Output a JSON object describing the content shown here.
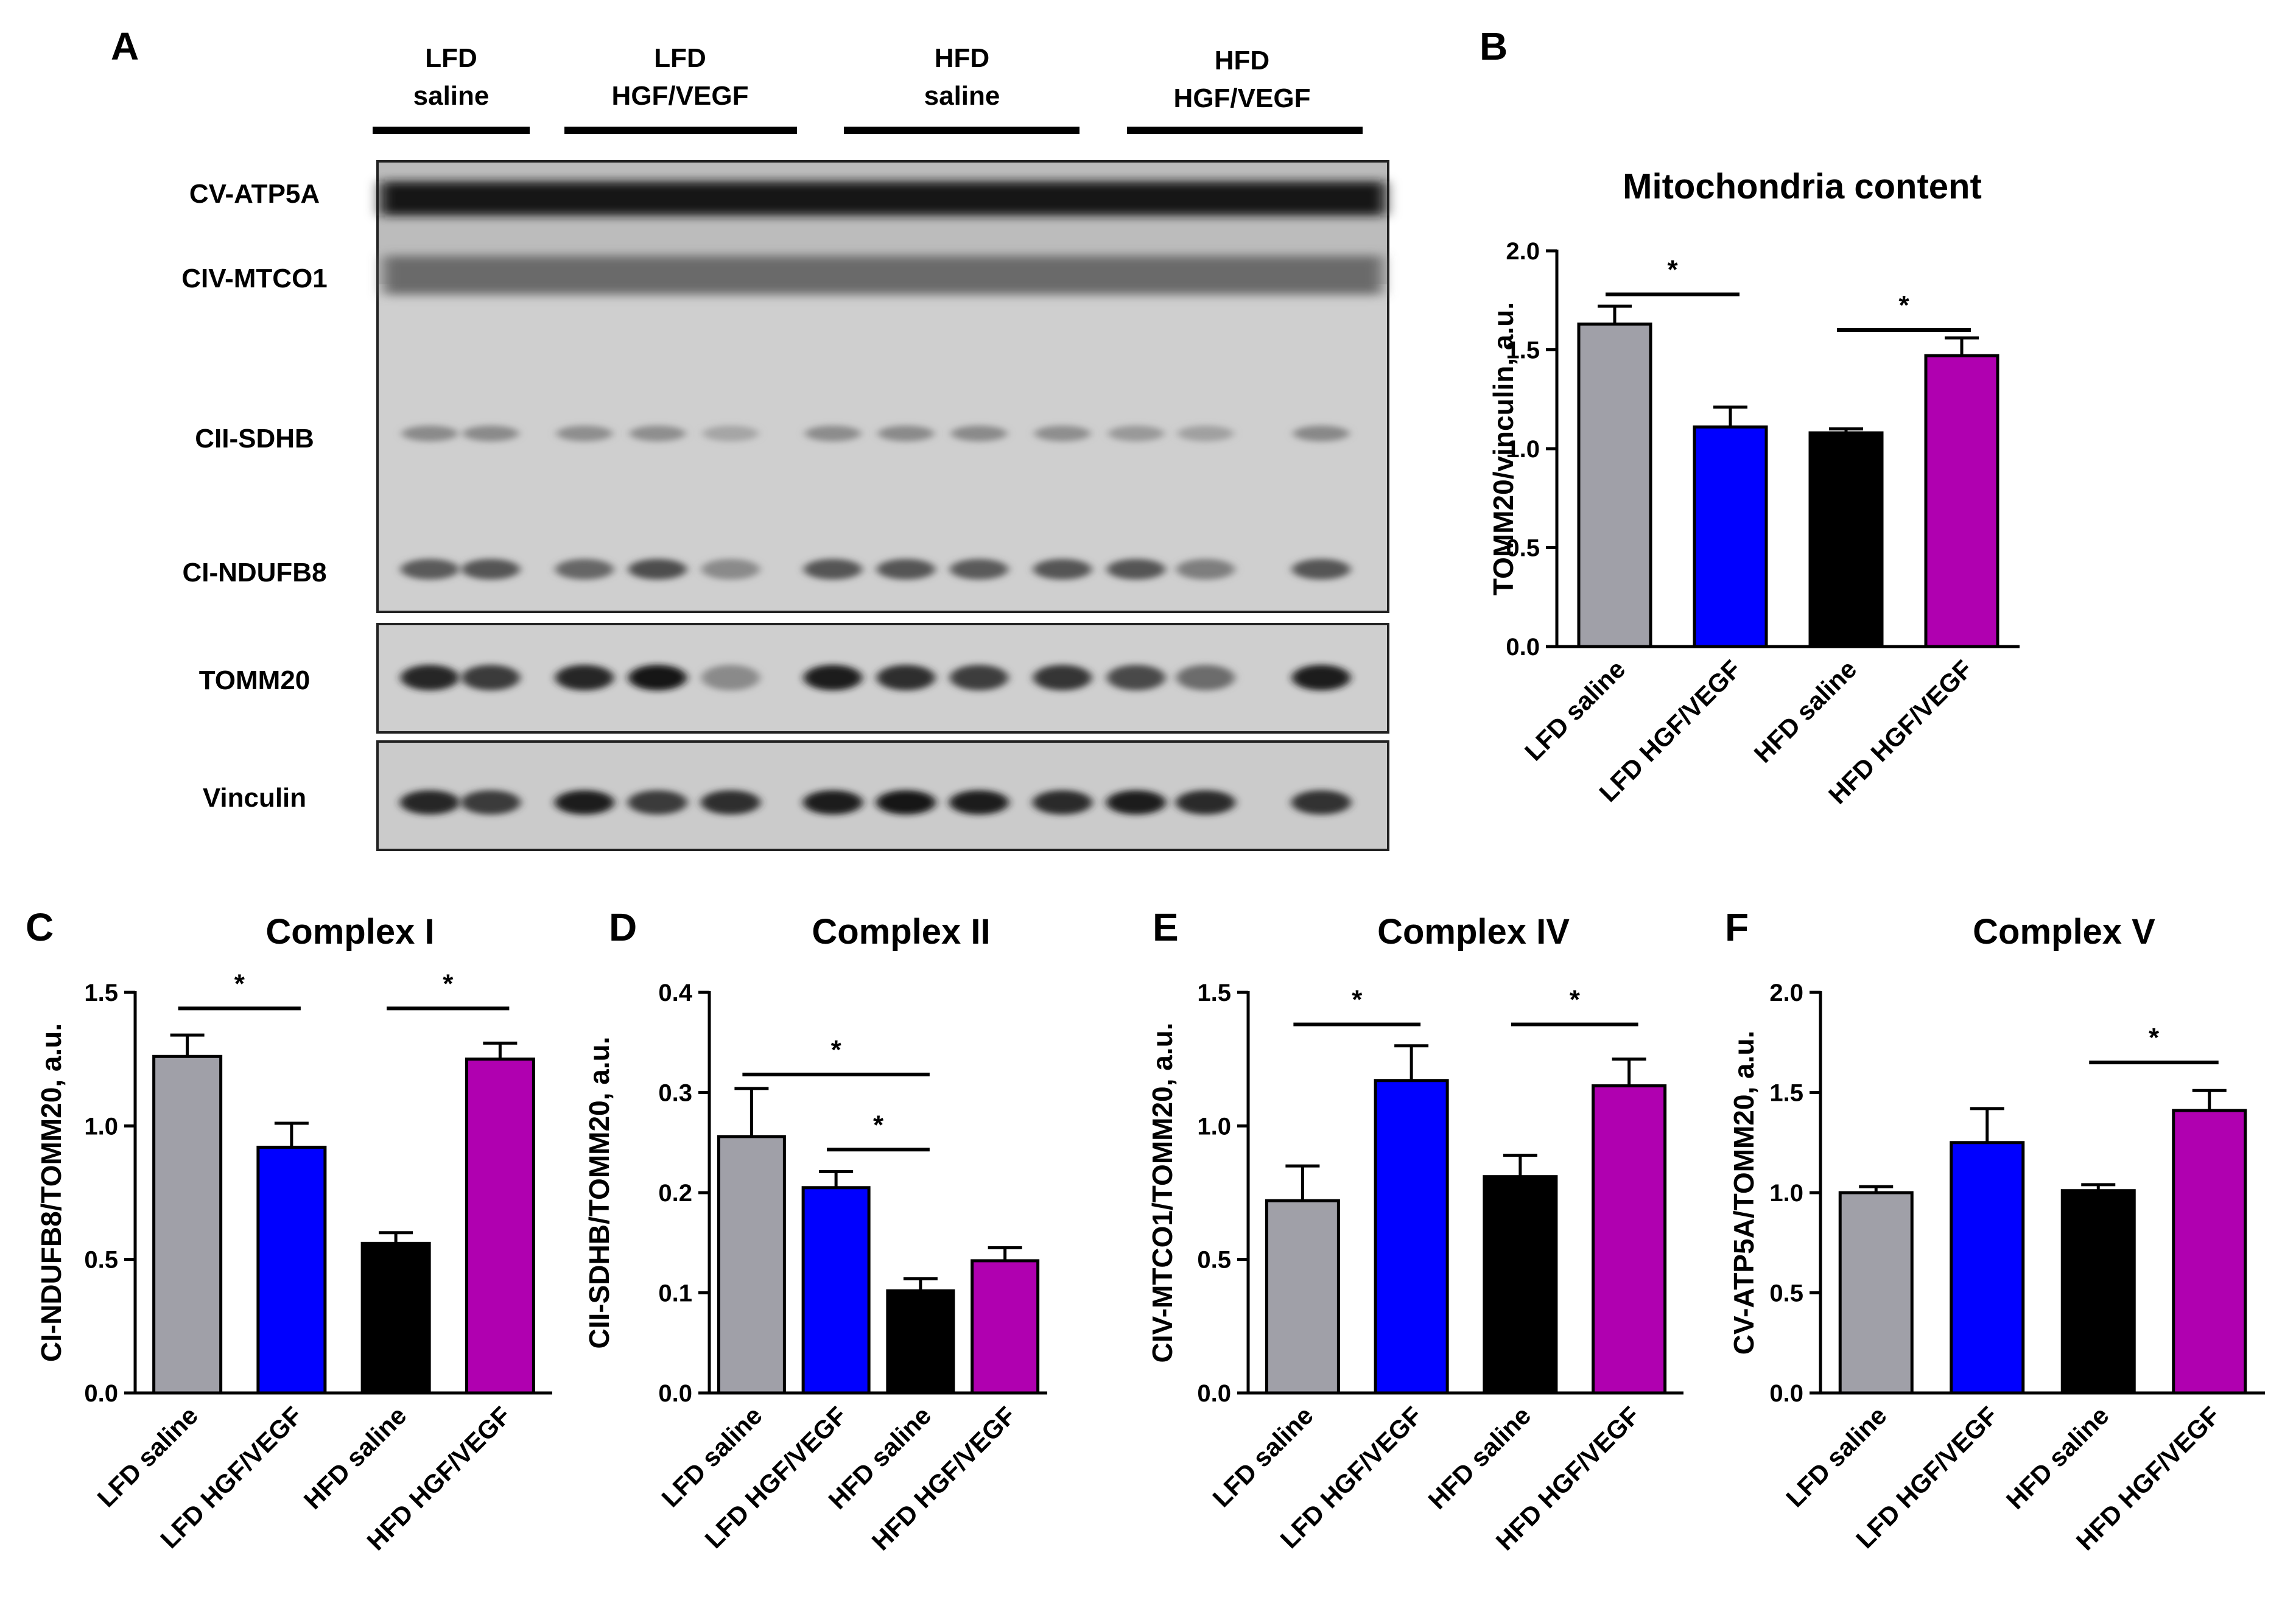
{
  "figure": {
    "panel_labels": [
      "A",
      "B",
      "C",
      "D",
      "E",
      "F"
    ],
    "blot": {
      "groups": [
        {
          "line1": "LFD",
          "line2": "saline"
        },
        {
          "line1": "LFD",
          "line2": "HGF/VEGF"
        },
        {
          "line1": "HFD",
          "line2": "saline"
        },
        {
          "line1": "HFD",
          "line2": "HGF/VEGF"
        }
      ],
      "band_labels": {
        "atp5a": "CV-ATP5A",
        "mtco1": "CIV-MTCO1",
        "sdhb": "CII-SDHB",
        "ndufb8": "CI-NDUFB8",
        "tomm20": "TOMM20",
        "vinculin": "Vinculin"
      }
    },
    "colors": {
      "LFD saline": "#a0a0a8",
      "LFD HGF/VEGF": "#0000ff",
      "HFD saline": "#000000",
      "HFD HGF/VEGF": "#b000b0"
    }
  },
  "chart_data": [
    {
      "panel": "B",
      "type": "bar",
      "title": "Mitochondria content",
      "ylabel": "TOMM20/vinculin, a.u.",
      "xlabel": "",
      "categories": [
        "LFD saline",
        "LFD HGF/VEGF",
        "HFD saline",
        "HFD HGF/VEGF"
      ],
      "values": [
        1.63,
        1.11,
        1.08,
        1.47
      ],
      "errors": [
        0.09,
        0.1,
        0.02,
        0.09
      ],
      "ylim": [
        0,
        2.0
      ],
      "yticks": [
        "0.0",
        "0.5",
        "1.0",
        "1.5",
        "2.0"
      ],
      "significance": [
        {
          "from": 0,
          "to": 1,
          "y": 1.78,
          "label": "*"
        },
        {
          "from": 2,
          "to": 3,
          "y": 1.6,
          "label": "*"
        }
      ]
    },
    {
      "panel": "C",
      "type": "bar",
      "title": "Complex I",
      "ylabel": "CI-NDUFB8/TOMM20, a.u.",
      "xlabel": "",
      "categories": [
        "LFD saline",
        "LFD HGF/VEGF",
        "HFD saline",
        "HFD HGF/VEGF"
      ],
      "values": [
        1.26,
        0.92,
        0.56,
        1.25
      ],
      "errors": [
        0.08,
        0.09,
        0.04,
        0.06
      ],
      "ylim": [
        0,
        1.5
      ],
      "yticks": [
        "0.0",
        "0.5",
        "1.0",
        "1.5"
      ],
      "significance": [
        {
          "from": 0,
          "to": 1,
          "y": 1.44,
          "label": "*"
        },
        {
          "from": 2,
          "to": 3,
          "y": 1.44,
          "label": "*"
        }
      ]
    },
    {
      "panel": "D",
      "type": "bar",
      "title": "Complex II",
      "ylabel": "CII-SDHB/TOMM20, a.u.",
      "xlabel": "",
      "categories": [
        "LFD saline",
        "LFD HGF/VEGF",
        "HFD saline",
        "HFD HGF/VEGF"
      ],
      "values": [
        0.256,
        0.205,
        0.102,
        0.132
      ],
      "errors": [
        0.048,
        0.016,
        0.012,
        0.013
      ],
      "ylim": [
        0,
        0.4
      ],
      "yticks": [
        "0.0",
        "0.1",
        "0.2",
        "0.3",
        "0.4"
      ],
      "significance": [
        {
          "from": 0,
          "to": 2,
          "y": 0.318,
          "label": "*"
        },
        {
          "from": 1,
          "to": 2,
          "y": 0.243,
          "label": "*"
        }
      ]
    },
    {
      "panel": "E",
      "type": "bar",
      "title": "Complex IV",
      "ylabel": "CIV-MTCO1/TOMM20, a.u.",
      "xlabel": "",
      "categories": [
        "LFD saline",
        "LFD HGF/VEGF",
        "HFD saline",
        "HFD HGF/VEGF"
      ],
      "values": [
        0.72,
        1.17,
        0.81,
        1.15
      ],
      "errors": [
        0.13,
        0.13,
        0.08,
        0.1
      ],
      "ylim": [
        0,
        1.5
      ],
      "yticks": [
        "0.0",
        "0.5",
        "1.0",
        "1.5"
      ],
      "significance": [
        {
          "from": 0,
          "to": 1,
          "y": 1.38,
          "label": "*"
        },
        {
          "from": 2,
          "to": 3,
          "y": 1.38,
          "label": "*"
        }
      ]
    },
    {
      "panel": "F",
      "type": "bar",
      "title": "Complex V",
      "ylabel": "CV-ATP5A/TOMM20, a.u.",
      "xlabel": "",
      "categories": [
        "LFD saline",
        "LFD HGF/VEGF",
        "HFD saline",
        "HFD HGF/VEGF"
      ],
      "values": [
        1.0,
        1.25,
        1.01,
        1.41
      ],
      "errors": [
        0.03,
        0.17,
        0.03,
        0.1
      ],
      "ylim": [
        0,
        2.0
      ],
      "yticks": [
        "0.0",
        "0.5",
        "1.0",
        "1.5",
        "2.0"
      ],
      "significance": [
        {
          "from": 2,
          "to": 3,
          "y": 1.65,
          "label": "*"
        }
      ]
    }
  ]
}
